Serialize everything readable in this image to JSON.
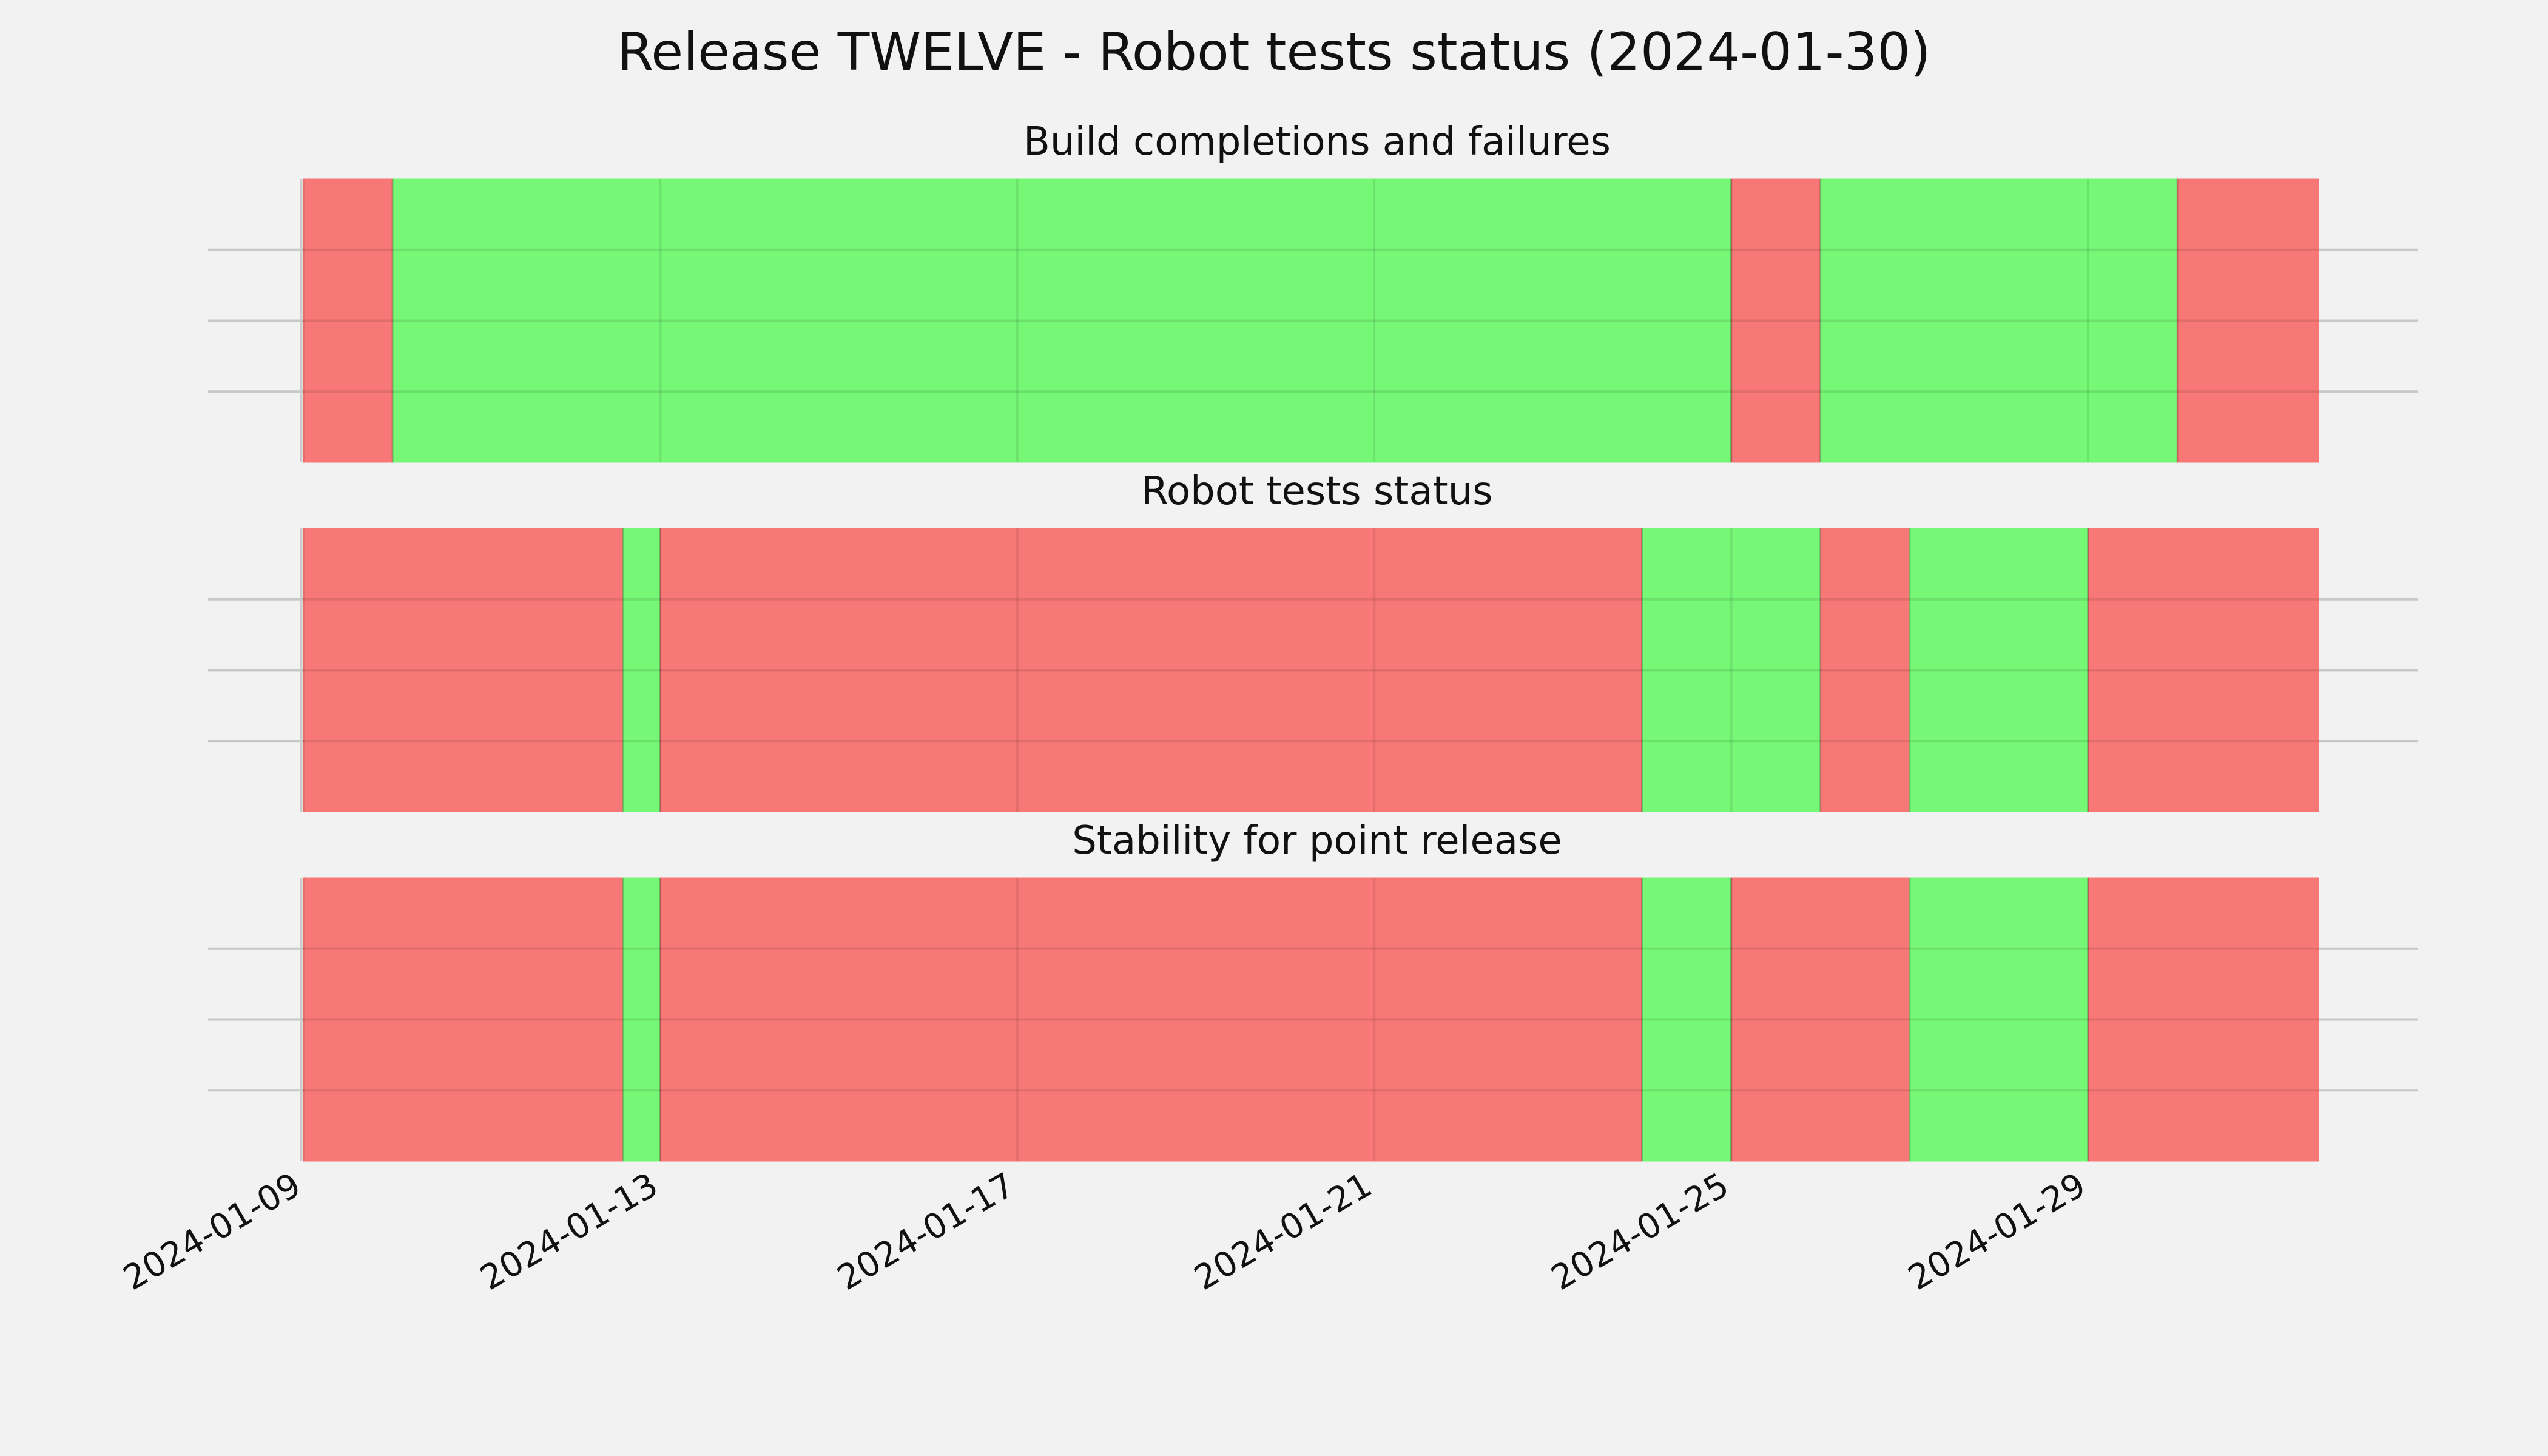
{
  "chart_data": {
    "type": "bar",
    "title": "Release TWELVE - Robot tests status (2024-01-30)",
    "x_type": "date",
    "xlim": [
      "2024-01-09",
      "2024-01-31 14:00"
    ],
    "x_ticks": [
      "2024-01-09",
      "2024-01-13",
      "2024-01-17",
      "2024-01-21",
      "2024-01-25",
      "2024-01-29"
    ],
    "colors": {
      "pass": "#76f776",
      "fail": "#f77876",
      "background": "#f2f2f2"
    },
    "grid": true,
    "panels": [
      {
        "name": "Build completions and failures",
        "segments": [
          {
            "start": "2024-01-09",
            "end": "2024-01-10",
            "status": "fail"
          },
          {
            "start": "2024-01-10",
            "end": "2024-01-25",
            "status": "pass"
          },
          {
            "start": "2024-01-25",
            "end": "2024-01-26",
            "status": "fail"
          },
          {
            "start": "2024-01-26",
            "end": "2024-01-30",
            "status": "pass"
          },
          {
            "start": "2024-01-30",
            "end": "2024-01-31 14:00",
            "status": "fail"
          }
        ]
      },
      {
        "name": "Robot tests status",
        "segments": [
          {
            "start": "2024-01-09",
            "end": "2024-01-12 14:00",
            "status": "fail"
          },
          {
            "start": "2024-01-12 14:00",
            "end": "2024-01-13",
            "status": "pass"
          },
          {
            "start": "2024-01-13",
            "end": "2024-01-24",
            "status": "fail"
          },
          {
            "start": "2024-01-24",
            "end": "2024-01-26",
            "status": "pass"
          },
          {
            "start": "2024-01-26",
            "end": "2024-01-27",
            "status": "fail"
          },
          {
            "start": "2024-01-27",
            "end": "2024-01-29",
            "status": "pass"
          },
          {
            "start": "2024-01-29",
            "end": "2024-01-31 14:00",
            "status": "fail"
          }
        ]
      },
      {
        "name": "Stability for point release",
        "segments": [
          {
            "start": "2024-01-09",
            "end": "2024-01-12 14:00",
            "status": "fail"
          },
          {
            "start": "2024-01-12 14:00",
            "end": "2024-01-13",
            "status": "pass"
          },
          {
            "start": "2024-01-13",
            "end": "2024-01-24",
            "status": "fail"
          },
          {
            "start": "2024-01-24",
            "end": "2024-01-25",
            "status": "pass"
          },
          {
            "start": "2024-01-25",
            "end": "2024-01-27",
            "status": "fail"
          },
          {
            "start": "2024-01-27",
            "end": "2024-01-29",
            "status": "pass"
          },
          {
            "start": "2024-01-29",
            "end": "2024-01-31 14:00",
            "status": "fail"
          }
        ]
      }
    ]
  }
}
